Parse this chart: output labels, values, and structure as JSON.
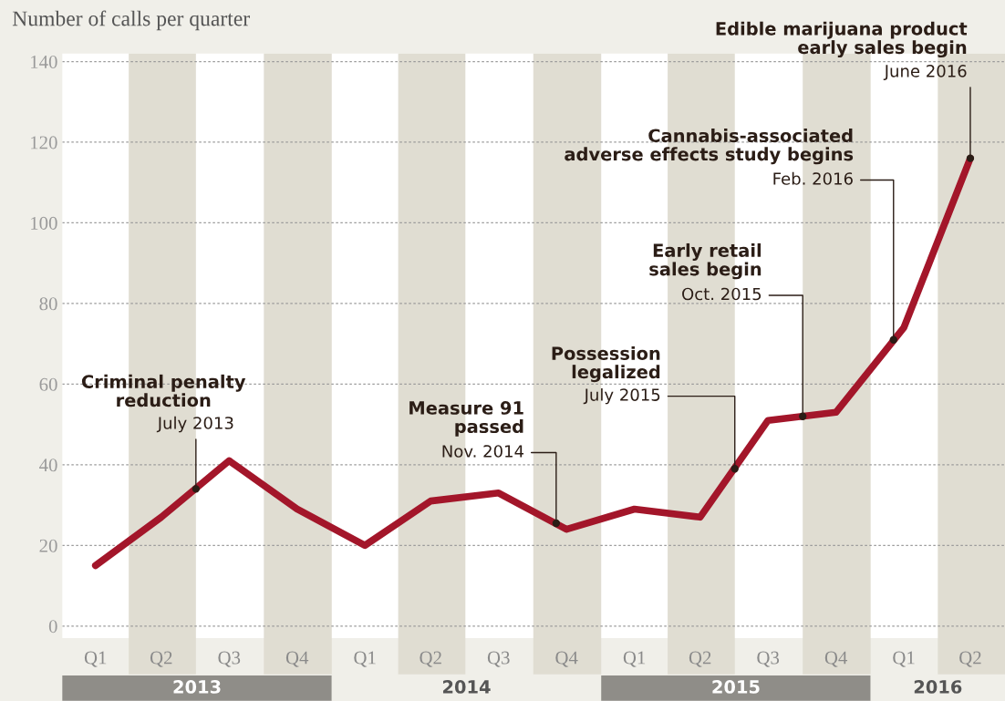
{
  "chart_data": {
    "type": "line",
    "title": "Number of calls per quarter",
    "x": [
      "2013-02-15",
      "2013-05-15",
      "2013-08-15",
      "2013-11-15",
      "2014-02-15",
      "2014-05-15",
      "2014-08-15",
      "2014-11-15",
      "2015-02-15",
      "2015-05-15",
      "2015-08-15",
      "2015-11-15",
      "2016-02-15",
      "2016-05-15"
    ],
    "series": [
      {
        "color": "#a3162a",
        "values": [
          15,
          27,
          41,
          29,
          20,
          31,
          33,
          24,
          29,
          27,
          51,
          53,
          74,
          116
        ]
      }
    ],
    "xlim": [
      "2013-01-01",
      "2016-07-01"
    ],
    "xticks": [
      {
        "value": "2013-02-15",
        "label": "Q1"
      },
      {
        "value": "2013-05-15",
        "label": "Q2"
      },
      {
        "value": "2013-08-15",
        "label": "Q3"
      },
      {
        "value": "2013-11-15",
        "label": "Q4"
      },
      {
        "value": "2014-02-15",
        "label": "Q1"
      },
      {
        "value": "2014-05-15",
        "label": "Q2"
      },
      {
        "value": "2014-08-15",
        "label": "Q3"
      },
      {
        "value": "2014-11-15",
        "label": "Q4"
      },
      {
        "value": "2015-02-15",
        "label": "Q1"
      },
      {
        "value": "2015-05-15",
        "label": "Q2"
      },
      {
        "value": "2015-08-15",
        "label": "Q3"
      },
      {
        "value": "2015-11-15",
        "label": "Q4"
      },
      {
        "value": "2016-02-15",
        "label": "Q1"
      },
      {
        "value": "2016-05-15",
        "label": "Q2"
      }
    ],
    "ylim": [
      -3,
      142
    ],
    "yticks": [
      0,
      20,
      40,
      60,
      80,
      100,
      120,
      140
    ],
    "grid": "y",
    "bands": [
      {
        "axis": "x",
        "from": "2013-04-01",
        "to": "2013-07-01",
        "color": "#e0ddd2"
      },
      {
        "axis": "x",
        "from": "2013-10-01",
        "to": "2014-01-01",
        "color": "#e0ddd2"
      },
      {
        "axis": "x",
        "from": "2014-04-01",
        "to": "2014-07-01",
        "color": "#e0ddd2"
      },
      {
        "axis": "x",
        "from": "2014-10-01",
        "to": "2015-01-01",
        "color": "#e0ddd2"
      },
      {
        "axis": "x",
        "from": "2015-04-01",
        "to": "2015-07-01",
        "color": "#e0ddd2"
      },
      {
        "axis": "x",
        "from": "2015-10-01",
        "to": "2016-01-01",
        "color": "#e0ddd2"
      },
      {
        "axis": "x",
        "from": "2016-04-01",
        "to": "2016-07-01",
        "color": "#e0ddd2"
      }
    ],
    "annotations": [
      "Criminal penalty\nreduction",
      {
        "text": "July 2013",
        "x": "2013-07",
        "y": 34
      },
      "Measure 91\npassed",
      {
        "text": "Nov. 2014",
        "x": "2014-11",
        "y": 25.5
      },
      "Possession\nlegalized",
      {
        "text": "July 2015",
        "x": "2015-07",
        "y": 39
      },
      "Early retail\nsales begin",
      {
        "text": "Oct. 2015",
        "x": "2015-10",
        "y": 52
      },
      "Cannabis-associated\nadverse effects study begins",
      {
        "text": "Feb. 2016",
        "x": "2016-02",
        "y": 71
      },
      "Edible marijuana product\nearly sales begin",
      {
        "text": "June 2016",
        "x": "2016-05-15",
        "y": 116
      },
      "2013",
      "2014",
      "2015",
      "2016"
    ]
  }
}
